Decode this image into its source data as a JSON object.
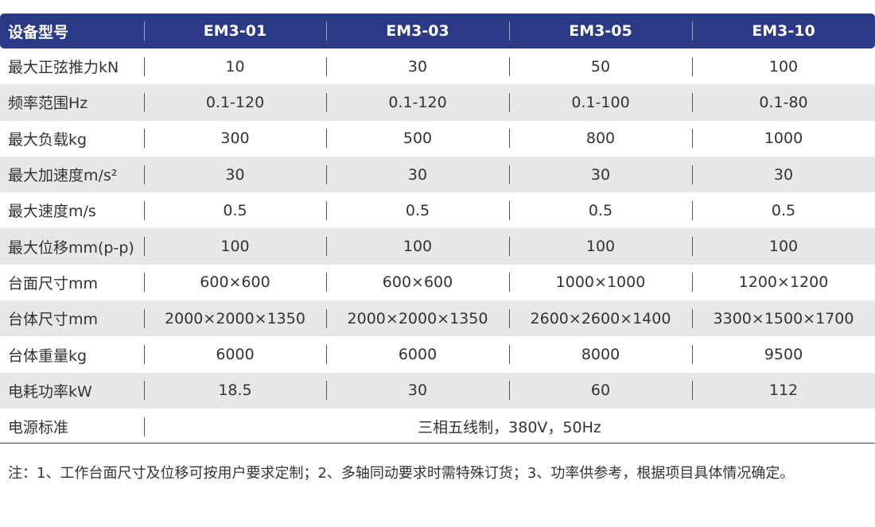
{
  "table": {
    "header": [
      "设备型号",
      "EM3-01",
      "EM3-03",
      "EM3-05",
      "EM3-10"
    ],
    "rows": [
      [
        "最大正弦推力kN",
        "10",
        "30",
        "50",
        "100"
      ],
      [
        "频率范围Hz",
        "0.1-120",
        "0.1-120",
        "0.1-100",
        "0.1-80"
      ],
      [
        "最大负载kg",
        "300",
        "500",
        "800",
        "1000"
      ],
      [
        "最大加速度m/s²",
        "30",
        "30",
        "30",
        "30"
      ],
      [
        "最大速度m/s",
        "0.5",
        "0.5",
        "0.5",
        "0.5"
      ],
      [
        "最大位移mm(p-p)",
        "100",
        "100",
        "100",
        "100"
      ],
      [
        "台面尺寸mm",
        "600×600",
        "600×600",
        "1000×1000",
        "1200×1200"
      ],
      [
        "台体尺寸mm",
        "2000×2000×1350",
        "2000×2000×1350",
        "2600×2600×1400",
        "3300×1500×1700"
      ],
      [
        "台体重量kg",
        "6000",
        "6000",
        "8000",
        "9500"
      ],
      [
        "电耗功率kW",
        "18.5",
        "30",
        "60",
        "112"
      ]
    ],
    "power_row": {
      "label": "电源标准",
      "value": "三相五线制，380V，50Hz"
    }
  },
  "note": "注：1、工作台面尺寸及位移可按用户要求定制；2、多轴同动要求时需特殊订货；3、功率供参考，根据项目具体情况确定。",
  "colors": {
    "header_bg": "#2a3a87",
    "alt_row_bg": "#e7e7e7"
  }
}
